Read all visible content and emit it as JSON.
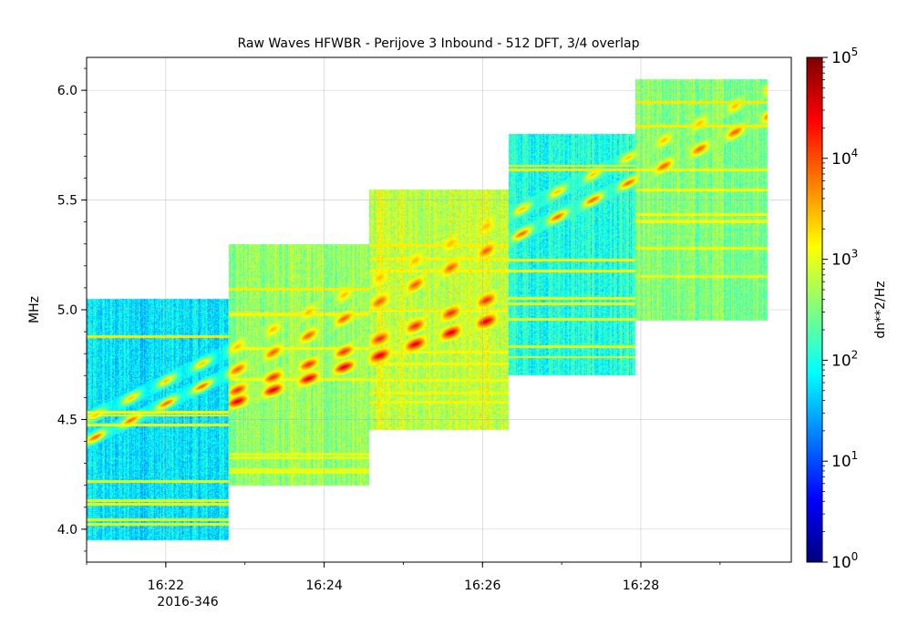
{
  "chart_data": {
    "type": "heatmap",
    "title": "Raw Waves HFWBR - Perijove 3 Inbound - 512 DFT, 3/4 overlap",
    "xlabel": "",
    "ylabel": "MHz",
    "x_tick_labels": [
      "16:22",
      "16:24",
      "16:26",
      "16:28"
    ],
    "x_tick_sublabel": "2016-346",
    "y_ticks": [
      4.0,
      4.5,
      5.0,
      5.5,
      6.0
    ],
    "y_tick_labels": [
      "4.0",
      "4.5",
      "5.0",
      "5.5",
      "6.0"
    ],
    "ylim": [
      3.85,
      6.15
    ],
    "xlim_minutes": [
      0,
      8.9
    ],
    "colorbar": {
      "label": "dn**2/Hz",
      "scale": "log",
      "colormap": "jet",
      "range": [
        1,
        100000
      ],
      "tick_labels": [
        "10",
        "10",
        "10",
        "10",
        "10",
        "10"
      ],
      "tick_exponents": [
        "0",
        "1",
        "2",
        "3",
        "4",
        "5"
      ]
    },
    "grid": true,
    "frequency_blocks": [
      {
        "start_min": 0.0,
        "end_min": 1.8,
        "f_low": 3.95,
        "f_high": 5.05,
        "background_level": 0.35
      },
      {
        "start_min": 1.8,
        "end_min": 3.57,
        "f_low": 4.2,
        "f_high": 5.3,
        "background_level": 0.52
      },
      {
        "start_min": 3.57,
        "end_min": 5.33,
        "f_low": 4.45,
        "f_high": 5.55,
        "background_level": 0.57
      },
      {
        "start_min": 5.33,
        "end_min": 6.93,
        "f_low": 4.7,
        "f_high": 5.8,
        "background_level": 0.4
      },
      {
        "start_min": 6.93,
        "end_min": 8.6,
        "f_low": 4.95,
        "f_high": 6.05,
        "background_level": 0.5
      }
    ],
    "emission_tracks": [
      {
        "from_min": 0.0,
        "from_mhz": 4.4,
        "to_min": 8.6,
        "to_mhz": 5.88,
        "peak_level": 0.8
      },
      {
        "from_min": 0.0,
        "from_mhz": 4.5,
        "to_min": 8.6,
        "to_mhz": 6.0,
        "peak_level": 0.7
      },
      {
        "from_min": 1.8,
        "from_mhz": 4.57,
        "to_min": 5.33,
        "to_mhz": 4.98,
        "peak_level": 0.92
      },
      {
        "from_min": 1.8,
        "from_mhz": 4.62,
        "to_min": 5.33,
        "to_mhz": 5.08,
        "peak_level": 0.85
      }
    ]
  }
}
